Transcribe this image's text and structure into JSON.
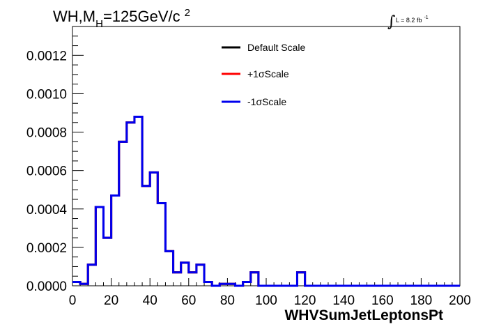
{
  "chart_data": {
    "type": "line",
    "title": "WH,M_H=125GeV/c^2",
    "title_parts": {
      "main": "WH,M",
      "sub": "H",
      "rest": "=125GeV/c",
      "sup": "2"
    },
    "luminosity_label": "L = 8.2 fb",
    "luminosity_sup": "-1",
    "xlabel": "WHVSumJetLeptonsPt",
    "ylabel": "",
    "xlim": [
      0,
      200
    ],
    "ylim": [
      0,
      0.00135
    ],
    "x_ticks": [
      "0",
      "20",
      "40",
      "60",
      "80",
      "100",
      "120",
      "140",
      "160",
      "180",
      "200"
    ],
    "y_ticks": [
      "0.0000",
      "0.0002",
      "0.0004",
      "0.0006",
      "0.0008",
      "0.0010",
      "0.0012"
    ],
    "grid": false,
    "legend_position": "top-center",
    "bin_edges": [
      0,
      4,
      8,
      12,
      16,
      20,
      24,
      28,
      32,
      36,
      40,
      44,
      48,
      52,
      56,
      60,
      64,
      68,
      72,
      76,
      80,
      84,
      88,
      92,
      96,
      100,
      104,
      108,
      112,
      116,
      120,
      124,
      128,
      132,
      136,
      140,
      144,
      148,
      152,
      156,
      160,
      164,
      168,
      172,
      176,
      180,
      184,
      188,
      192,
      196,
      200
    ],
    "series": [
      {
        "name": "Default Scale",
        "color": "#000000",
        "values": [
          2e-05,
          1e-05,
          0.00011,
          0.00041,
          0.00025,
          0.00047,
          0.00075,
          0.00085,
          0.00088,
          0.00052,
          0.00059,
          0.00043,
          0.00018,
          7e-05,
          0.00012,
          7e-05,
          0.00011,
          2e-05,
          0.0,
          1e-05,
          1e-05,
          0.0,
          2e-05,
          7e-05,
          0.0,
          0.0,
          0.0,
          0.0,
          0.0,
          7e-05,
          0.0,
          0.0,
          0.0,
          0.0,
          0.0,
          0.0,
          0.0,
          0.0,
          0.0,
          0.0,
          0.0,
          0.0,
          0.0,
          0.0,
          0.0,
          0.0,
          0.0,
          0.0,
          0.0,
          0.0
        ]
      },
      {
        "name": "+1σScale",
        "color": "#ff0000",
        "values": [
          2e-05,
          1e-05,
          0.00011,
          0.00041,
          0.00025,
          0.00047,
          0.00075,
          0.00085,
          0.00088,
          0.00052,
          0.00059,
          0.00043,
          0.00018,
          7e-05,
          0.00012,
          7e-05,
          0.00011,
          2e-05,
          0.0,
          1e-05,
          1e-05,
          0.0,
          2e-05,
          7e-05,
          0.0,
          0.0,
          0.0,
          0.0,
          0.0,
          7e-05,
          0.0,
          0.0,
          0.0,
          0.0,
          0.0,
          0.0,
          0.0,
          0.0,
          0.0,
          0.0,
          0.0,
          0.0,
          0.0,
          0.0,
          0.0,
          0.0,
          0.0,
          0.0,
          0.0,
          0.0
        ]
      },
      {
        "name": "-1σScale",
        "color": "#0000ee",
        "values": [
          2e-05,
          1e-05,
          0.00011,
          0.00041,
          0.00025,
          0.00047,
          0.00075,
          0.00085,
          0.00088,
          0.00052,
          0.00059,
          0.00043,
          0.00018,
          7e-05,
          0.00012,
          7e-05,
          0.00011,
          2e-05,
          0.0,
          1e-05,
          1e-05,
          0.0,
          2e-05,
          7e-05,
          0.0,
          0.0,
          0.0,
          0.0,
          0.0,
          7e-05,
          0.0,
          0.0,
          0.0,
          0.0,
          0.0,
          0.0,
          0.0,
          0.0,
          0.0,
          0.0,
          0.0,
          0.0,
          0.0,
          0.0,
          0.0,
          0.0,
          0.0,
          0.0,
          0.0,
          0.0
        ]
      }
    ]
  }
}
